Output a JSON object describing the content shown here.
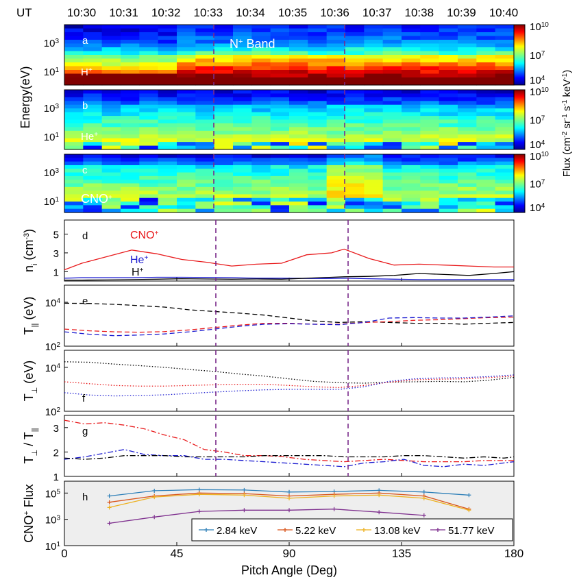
{
  "figure": {
    "ut_label": "UT",
    "ut_ticks": [
      "10:30",
      "10:31",
      "10:32",
      "10:33",
      "10:34",
      "10:35",
      "10:36",
      "10:37",
      "10:38",
      "10:39",
      "10:40"
    ],
    "band_label": "N",
    "band_label_sup": "+",
    "band_label_suffix": " Band",
    "xlabel": "Pitch Angle (Deg)",
    "xticks": [
      "0",
      "45",
      "90",
      "135",
      "180"
    ],
    "dashed_line_color": "#7a2a8a",
    "spectrogram_ylabel": "Energy(eV)",
    "colorbar_label": "Flux (cm",
    "colorbar_label_sup1": "-2",
    "colorbar_label_mid1": " sr",
    "colorbar_label_sup2": "-1",
    "colorbar_label_mid2": " s",
    "colorbar_label_sup3": "-1",
    "colorbar_label_mid3": " keV",
    "colorbar_label_sup4": "-1",
    "colorbar_label_end": ")",
    "colorbar_ticks": [
      {
        "base": "10",
        "exp": "10"
      },
      {
        "base": "10",
        "exp": "7"
      },
      {
        "base": "10",
        "exp": "4"
      }
    ]
  },
  "chart_data": [
    {
      "panel": "a",
      "type": "heatmap",
      "species": "H",
      "species_sup": "+",
      "yscale": "log",
      "yticks": [
        {
          "base": "10",
          "exp": "3"
        },
        {
          "base": "10",
          "exp": "1"
        }
      ]
    },
    {
      "panel": "b",
      "type": "heatmap",
      "species": "He",
      "species_sup": "+",
      "yscale": "log",
      "yticks": [
        {
          "base": "10",
          "exp": "3"
        },
        {
          "base": "10",
          "exp": "1"
        }
      ]
    },
    {
      "panel": "c",
      "type": "heatmap",
      "species": "CNO",
      "species_sup": "+",
      "yscale": "log",
      "yticks": [
        {
          "base": "10",
          "exp": "3"
        },
        {
          "base": "10",
          "exp": "1"
        }
      ]
    },
    {
      "panel": "d",
      "type": "line",
      "ylabel": "n",
      "ylabel_sub": "i",
      "ylabel_unit": " (cm",
      "ylabel_sup": "-3",
      "ylabel_close": ")",
      "yticks": [
        "5",
        "3",
        "1"
      ],
      "ylim": [
        0,
        6.5
      ],
      "x": [
        0,
        7,
        17,
        27,
        37,
        47,
        57,
        67,
        77,
        87,
        97,
        107,
        112,
        122,
        132,
        142,
        152,
        162,
        172,
        180
      ],
      "series": [
        {
          "name": "CNO",
          "sup": "+",
          "color": "#e8191b",
          "dash": "",
          "values": [
            1.2,
            1.9,
            2.6,
            3.3,
            2.9,
            2.3,
            2.0,
            1.6,
            1.8,
            1.9,
            2.8,
            3.0,
            3.4,
            2.4,
            1.7,
            1.8,
            1.7,
            1.6,
            1.5,
            1.5
          ]
        },
        {
          "name": "He",
          "sup": "+",
          "color": "#1a1ad0",
          "dash": "",
          "values": [
            0.3,
            0.35,
            0.35,
            0.35,
            0.4,
            0.4,
            0.38,
            0.35,
            0.3,
            0.3,
            0.28,
            0.28,
            0.3,
            0.25,
            0.2,
            0.15,
            0.15,
            0.15,
            0.15,
            0.15
          ]
        },
        {
          "name": "H",
          "sup": "+",
          "color": "#000000",
          "dash": "",
          "values": [
            0.1,
            0.1,
            0.12,
            0.15,
            0.2,
            0.25,
            0.22,
            0.2,
            0.22,
            0.2,
            0.3,
            0.4,
            0.45,
            0.5,
            0.6,
            0.8,
            0.7,
            0.6,
            0.8,
            1.0
          ]
        }
      ]
    },
    {
      "panel": "e",
      "type": "line",
      "yscale": "log",
      "ylabel": "T",
      "ylabel_sub": "||",
      "ylabel_unit": " (eV)",
      "yticks": [
        {
          "base": "10",
          "exp": "4"
        },
        {
          "base": "10",
          "exp": "2"
        }
      ],
      "ylim": [
        100,
        60000
      ],
      "x": [
        0,
        10,
        20,
        30,
        40,
        50,
        60,
        70,
        80,
        90,
        100,
        110,
        120,
        130,
        140,
        150,
        160,
        170,
        180
      ],
      "series": [
        {
          "name": "H+",
          "color": "#000000",
          "dash": "7,4",
          "values": [
            9000,
            8800,
            8000,
            7000,
            6000,
            4500,
            3800,
            3200,
            2600,
            1900,
            1400,
            1200,
            1300,
            1200,
            1100,
            1100,
            1000,
            1100,
            1200
          ]
        },
        {
          "name": "CNO+",
          "color": "#e8191b",
          "dash": "7,4",
          "values": [
            600,
            500,
            450,
            430,
            460,
            550,
            700,
            900,
            1100,
            1100,
            1000,
            1000,
            1200,
            1300,
            1500,
            1600,
            1800,
            2000,
            2100
          ]
        },
        {
          "name": "He+",
          "color": "#1a1ad0",
          "dash": "7,4",
          "values": [
            450,
            350,
            300,
            320,
            360,
            450,
            600,
            800,
            1000,
            1050,
            1000,
            950,
            1200,
            1900,
            2000,
            1900,
            1900,
            2100,
            2400
          ]
        }
      ]
    },
    {
      "panel": "f",
      "type": "line",
      "yscale": "log",
      "ylabel": "T",
      "ylabel_sub": "⊥",
      "ylabel_unit": " (eV)",
      "yticks": [
        {
          "base": "10",
          "exp": "4"
        },
        {
          "base": "10",
          "exp": "2"
        }
      ],
      "ylim": [
        100,
        60000
      ],
      "x": [
        0,
        10,
        20,
        30,
        40,
        50,
        60,
        70,
        80,
        90,
        100,
        110,
        120,
        130,
        140,
        150,
        160,
        170,
        180
      ],
      "series": [
        {
          "name": "H+",
          "color": "#000000",
          "dash": "1.5,2.5",
          "values": [
            18000,
            17000,
            14000,
            12000,
            10000,
            8000,
            6500,
            5000,
            4000,
            3000,
            2300,
            2000,
            1900,
            2100,
            2200,
            2300,
            2200,
            2600,
            3500
          ]
        },
        {
          "name": "CNO+",
          "color": "#e8191b",
          "dash": "1.5,2.5",
          "values": [
            2200,
            1800,
            1500,
            1400,
            1400,
            1500,
            1600,
            1700,
            1700,
            1500,
            1300,
            1200,
            1500,
            2100,
            2700,
            2900,
            3000,
            3400,
            4000
          ]
        },
        {
          "name": "He+",
          "color": "#1a1ad0",
          "dash": "1.5,2.5",
          "values": [
            700,
            550,
            500,
            520,
            560,
            650,
            750,
            850,
            950,
            1000,
            1000,
            1000,
            1300,
            2300,
            3000,
            3300,
            3400,
            3800,
            4500
          ]
        }
      ]
    },
    {
      "panel": "g",
      "type": "line",
      "ylabel": "T",
      "ylabel_sub": "⊥",
      "ylabel_mid": " / T",
      "ylabel_sub2": "||",
      "yticks": [
        "3",
        "2",
        "1"
      ],
      "ylim": [
        1,
        3.5
      ],
      "x": [
        0,
        8,
        16,
        24,
        32,
        40,
        48,
        56,
        64,
        72,
        80,
        88,
        96,
        104,
        112,
        120,
        128,
        136,
        144,
        152,
        160,
        168,
        176,
        180
      ],
      "series": [
        {
          "name": "CNO+",
          "color": "#e8191b",
          "dash": "8,3,2,3",
          "values": [
            3.3,
            3.15,
            3.2,
            3.1,
            2.95,
            2.7,
            2.5,
            2.1,
            2.0,
            1.85,
            1.85,
            1.8,
            1.7,
            1.65,
            1.6,
            1.65,
            1.7,
            1.65,
            1.6,
            1.6,
            1.6,
            1.65,
            1.65,
            1.65
          ]
        },
        {
          "name": "He+",
          "color": "#1a1ad0",
          "dash": "8,3,2,3",
          "values": [
            1.7,
            1.8,
            1.95,
            2.1,
            1.9,
            1.85,
            1.85,
            1.7,
            1.7,
            1.65,
            1.6,
            1.55,
            1.5,
            1.45,
            1.4,
            1.55,
            1.6,
            1.7,
            1.45,
            1.4,
            1.5,
            1.45,
            1.55,
            1.6
          ]
        },
        {
          "name": "H+",
          "color": "#000000",
          "dash": "8,3,2,3",
          "values": [
            1.75,
            1.7,
            1.75,
            1.85,
            1.85,
            1.85,
            1.8,
            1.8,
            1.8,
            1.8,
            1.85,
            1.85,
            1.85,
            1.85,
            1.8,
            1.8,
            1.8,
            1.85,
            1.85,
            1.8,
            1.75,
            1.8,
            1.75,
            1.8
          ]
        }
      ]
    },
    {
      "panel": "h",
      "type": "line",
      "yscale": "log",
      "background": "#eeeeee",
      "ylabel": "CNO",
      "ylabel_sup": "+",
      "ylabel_unit": " Flux",
      "yticks": [
        {
          "base": "10",
          "exp": "5"
        },
        {
          "base": "10",
          "exp": "3"
        },
        {
          "base": "10",
          "exp": "1"
        }
      ],
      "ylim": [
        10,
        800000
      ],
      "x": [
        18,
        36,
        54,
        72,
        90,
        108,
        126,
        144,
        162
      ],
      "series": [
        {
          "name": "2.84 keV",
          "color": "#2d7fb8",
          "values": [
            60000,
            150000,
            180000,
            170000,
            120000,
            130000,
            160000,
            120000,
            70000
          ]
        },
        {
          "name": "5.22 keV",
          "color": "#d9541a",
          "values": [
            20000,
            60000,
            100000,
            90000,
            60000,
            80000,
            100000,
            60000,
            6000
          ]
        },
        {
          "name": "13.08 keV",
          "color": "#edb11f",
          "values": [
            8000,
            50000,
            80000,
            70000,
            40000,
            60000,
            70000,
            40000,
            5000
          ]
        },
        {
          "name": "51.77 keV",
          "color": "#7e2f8e",
          "values": [
            500,
            1500,
            4000,
            5000,
            5000,
            6000,
            3500,
            2000,
            null
          ]
        }
      ]
    }
  ]
}
